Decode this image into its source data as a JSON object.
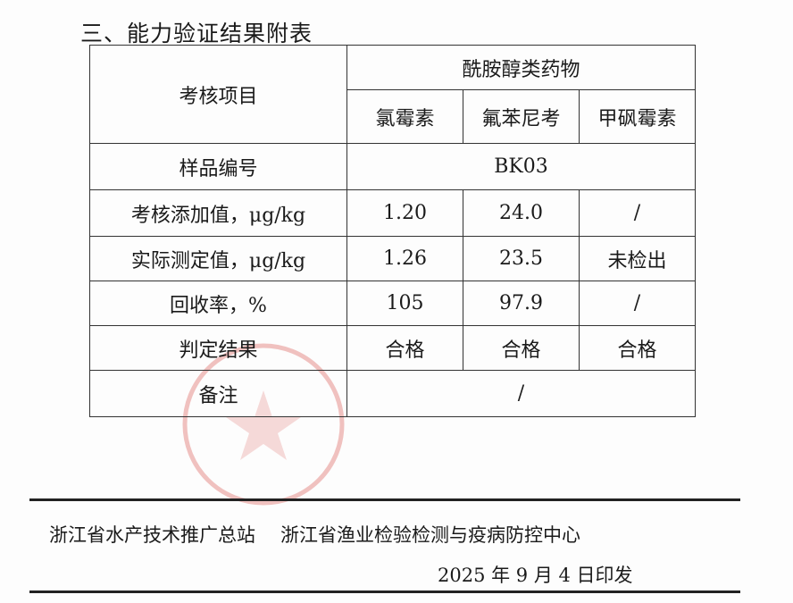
{
  "title": "三、能力验证结果附表",
  "table": {
    "item_header": "考核项目",
    "group_header": "酰胺醇类药物",
    "drugs": [
      "氯霉素",
      "氟苯尼考",
      "甲砜霉素"
    ],
    "sample_label": "样品编号",
    "sample_id": "BK03",
    "rows": [
      {
        "label": "考核添加值，μg/kg",
        "values": [
          "1.20",
          "24.0",
          "/"
        ]
      },
      {
        "label": "实际测定值，μg/kg",
        "values": [
          "1.26",
          "23.5",
          "未检出"
        ]
      },
      {
        "label": "回收率，%",
        "values": [
          "105",
          "97.9",
          "/"
        ]
      },
      {
        "label": "判定结果",
        "values": [
          "合格",
          "合格",
          "合格"
        ]
      }
    ],
    "remark_label": "备注",
    "remark_value": "/"
  },
  "footer": {
    "issuer1": "浙江省水产技术推广总站",
    "issuer2": "浙江省渔业检验检测与疫病防控中心",
    "date": "2025 年 9 月 4 日印发"
  },
  "stamp_color": "#d9534f"
}
